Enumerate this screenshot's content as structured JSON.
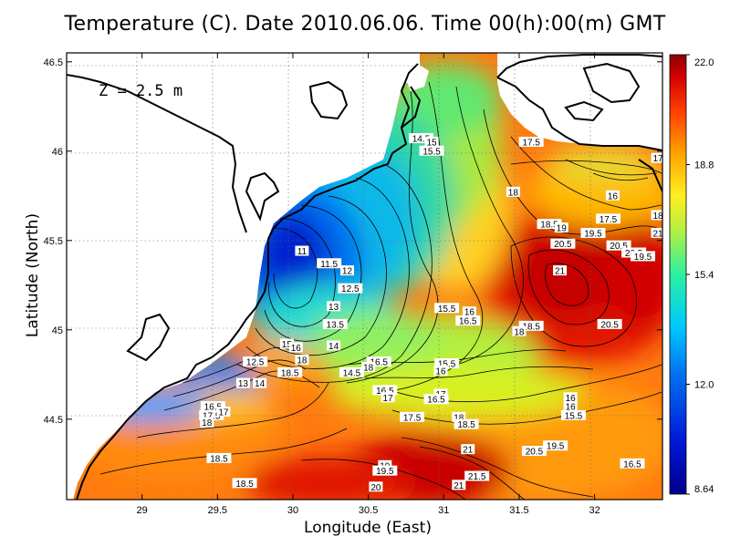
{
  "title": "Temperature (C). Date 2010.06.06. Time 00(h):00(m) GMT",
  "xlabel": "Longitude (East)",
  "ylabel": "Latitude (North)",
  "depth_label": "Z = 2.5 m",
  "map": {
    "lon_range": [
      28.5,
      32.45
    ],
    "lat_range": [
      44.05,
      46.55
    ],
    "lon_ticks": [
      "29",
      "29.5",
      "30",
      "30.5",
      "31",
      "31.5",
      "32"
    ],
    "lat_ticks": [
      "44.5",
      "45",
      "45.5",
      "46",
      "46.5"
    ],
    "grid": "dotted",
    "colorbar": {
      "min": "8.64",
      "max": "22.0",
      "ticks": [
        "22.0",
        "18.8",
        "15.4",
        "12.0",
        "8.64"
      ]
    },
    "contour_labels": [
      {
        "t": "11",
        "lon": 30.06,
        "lat": 45.44
      },
      {
        "t": "11.5",
        "lon": 30.24,
        "lat": 45.37
      },
      {
        "t": "12",
        "lon": 30.36,
        "lat": 45.33
      },
      {
        "t": "12.5",
        "lon": 30.38,
        "lat": 45.23
      },
      {
        "t": "13",
        "lon": 30.27,
        "lat": 45.13
      },
      {
        "t": "13.5",
        "lon": 30.28,
        "lat": 45.03
      },
      {
        "t": "14",
        "lon": 30.27,
        "lat": 44.91
      },
      {
        "t": "14.5",
        "lon": 30.85,
        "lat": 46.07
      },
      {
        "t": "15",
        "lon": 30.92,
        "lat": 46.05
      },
      {
        "t": "15.5",
        "lon": 30.92,
        "lat": 46.0
      },
      {
        "t": "17.5",
        "lon": 31.58,
        "lat": 46.05
      },
      {
        "t": "18",
        "lon": 31.46,
        "lat": 45.77
      },
      {
        "t": "16",
        "lon": 32.12,
        "lat": 45.75
      },
      {
        "t": "17.5",
        "lon": 32.09,
        "lat": 45.62
      },
      {
        "t": "18.5",
        "lon": 31.7,
        "lat": 45.59
      },
      {
        "t": "19",
        "lon": 31.78,
        "lat": 45.57
      },
      {
        "t": "19.5",
        "lon": 31.99,
        "lat": 45.54
      },
      {
        "t": "20.5",
        "lon": 31.79,
        "lat": 45.48
      },
      {
        "t": "20.5",
        "lon": 32.16,
        "lat": 45.47
      },
      {
        "t": "20.5",
        "lon": 32.26,
        "lat": 45.43
      },
      {
        "t": "19.5",
        "lon": 32.32,
        "lat": 45.41
      },
      {
        "t": "21",
        "lon": 31.77,
        "lat": 45.33
      },
      {
        "t": "15.5",
        "lon": 31.02,
        "lat": 45.12
      },
      {
        "t": "16",
        "lon": 31.17,
        "lat": 45.1
      },
      {
        "t": "16.5",
        "lon": 31.16,
        "lat": 45.05
      },
      {
        "t": "18.5",
        "lon": 31.58,
        "lat": 45.02
      },
      {
        "t": "18",
        "lon": 31.5,
        "lat": 44.99
      },
      {
        "t": "20.5",
        "lon": 32.1,
        "lat": 45.03
      },
      {
        "t": "16.5",
        "lon": 30.57,
        "lat": 44.82
      },
      {
        "t": "18",
        "lon": 30.5,
        "lat": 44.79
      },
      {
        "t": "14.5",
        "lon": 30.39,
        "lat": 44.76
      },
      {
        "t": "15.5",
        "lon": 31.02,
        "lat": 44.81
      },
      {
        "t": "16",
        "lon": 30.98,
        "lat": 44.77
      },
      {
        "t": "16.5",
        "lon": 30.61,
        "lat": 44.66
      },
      {
        "t": "17",
        "lon": 30.63,
        "lat": 44.62
      },
      {
        "t": "17",
        "lon": 30.98,
        "lat": 44.64
      },
      {
        "t": "16.5",
        "lon": 30.95,
        "lat": 44.61
      },
      {
        "t": "16",
        "lon": 31.84,
        "lat": 44.62
      },
      {
        "t": "16",
        "lon": 31.84,
        "lat": 44.57
      },
      {
        "t": "15.5",
        "lon": 31.86,
        "lat": 44.52
      },
      {
        "t": "17.5",
        "lon": 30.79,
        "lat": 44.51
      },
      {
        "t": "18",
        "lon": 31.1,
        "lat": 44.51
      },
      {
        "t": "18.5",
        "lon": 31.15,
        "lat": 44.47
      },
      {
        "t": "21",
        "lon": 31.16,
        "lat": 44.33
      },
      {
        "t": "20.5",
        "lon": 31.6,
        "lat": 44.32
      },
      {
        "t": "19.5",
        "lon": 31.74,
        "lat": 44.35
      },
      {
        "t": "16.5",
        "lon": 32.25,
        "lat": 44.25
      },
      {
        "t": "19",
        "lon": 30.61,
        "lat": 44.24
      },
      {
        "t": "19.5",
        "lon": 30.61,
        "lat": 44.21
      },
      {
        "t": "21.5",
        "lon": 31.22,
        "lat": 44.18
      },
      {
        "t": "21",
        "lon": 31.1,
        "lat": 44.13
      },
      {
        "t": "20",
        "lon": 30.55,
        "lat": 44.12
      },
      {
        "t": "18.5",
        "lon": 29.68,
        "lat": 44.14
      },
      {
        "t": "18.5",
        "lon": 29.51,
        "lat": 44.28
      },
      {
        "t": "16.5",
        "lon": 29.47,
        "lat": 44.57
      },
      {
        "t": "17.5",
        "lon": 29.46,
        "lat": 44.52
      },
      {
        "t": "17",
        "lon": 29.54,
        "lat": 44.54
      },
      {
        "t": "18",
        "lon": 29.43,
        "lat": 44.48
      },
      {
        "t": "13",
        "lon": 29.67,
        "lat": 44.7
      },
      {
        "t": "14",
        "lon": 29.78,
        "lat": 44.7
      },
      {
        "t": "12.5",
        "lon": 29.75,
        "lat": 44.82
      },
      {
        "t": "15",
        "lon": 29.96,
        "lat": 44.92
      },
      {
        "t": "16",
        "lon": 30.02,
        "lat": 44.9
      },
      {
        "t": "18",
        "lon": 30.06,
        "lat": 44.83
      },
      {
        "t": "18.5",
        "lon": 29.98,
        "lat": 44.76
      },
      {
        "t": "18",
        "lon": 32.42,
        "lat": 45.64
      },
      {
        "t": "17",
        "lon": 32.42,
        "lat": 45.96
      },
      {
        "t": "21",
        "lon": 32.42,
        "lat": 45.54
      }
    ]
  }
}
